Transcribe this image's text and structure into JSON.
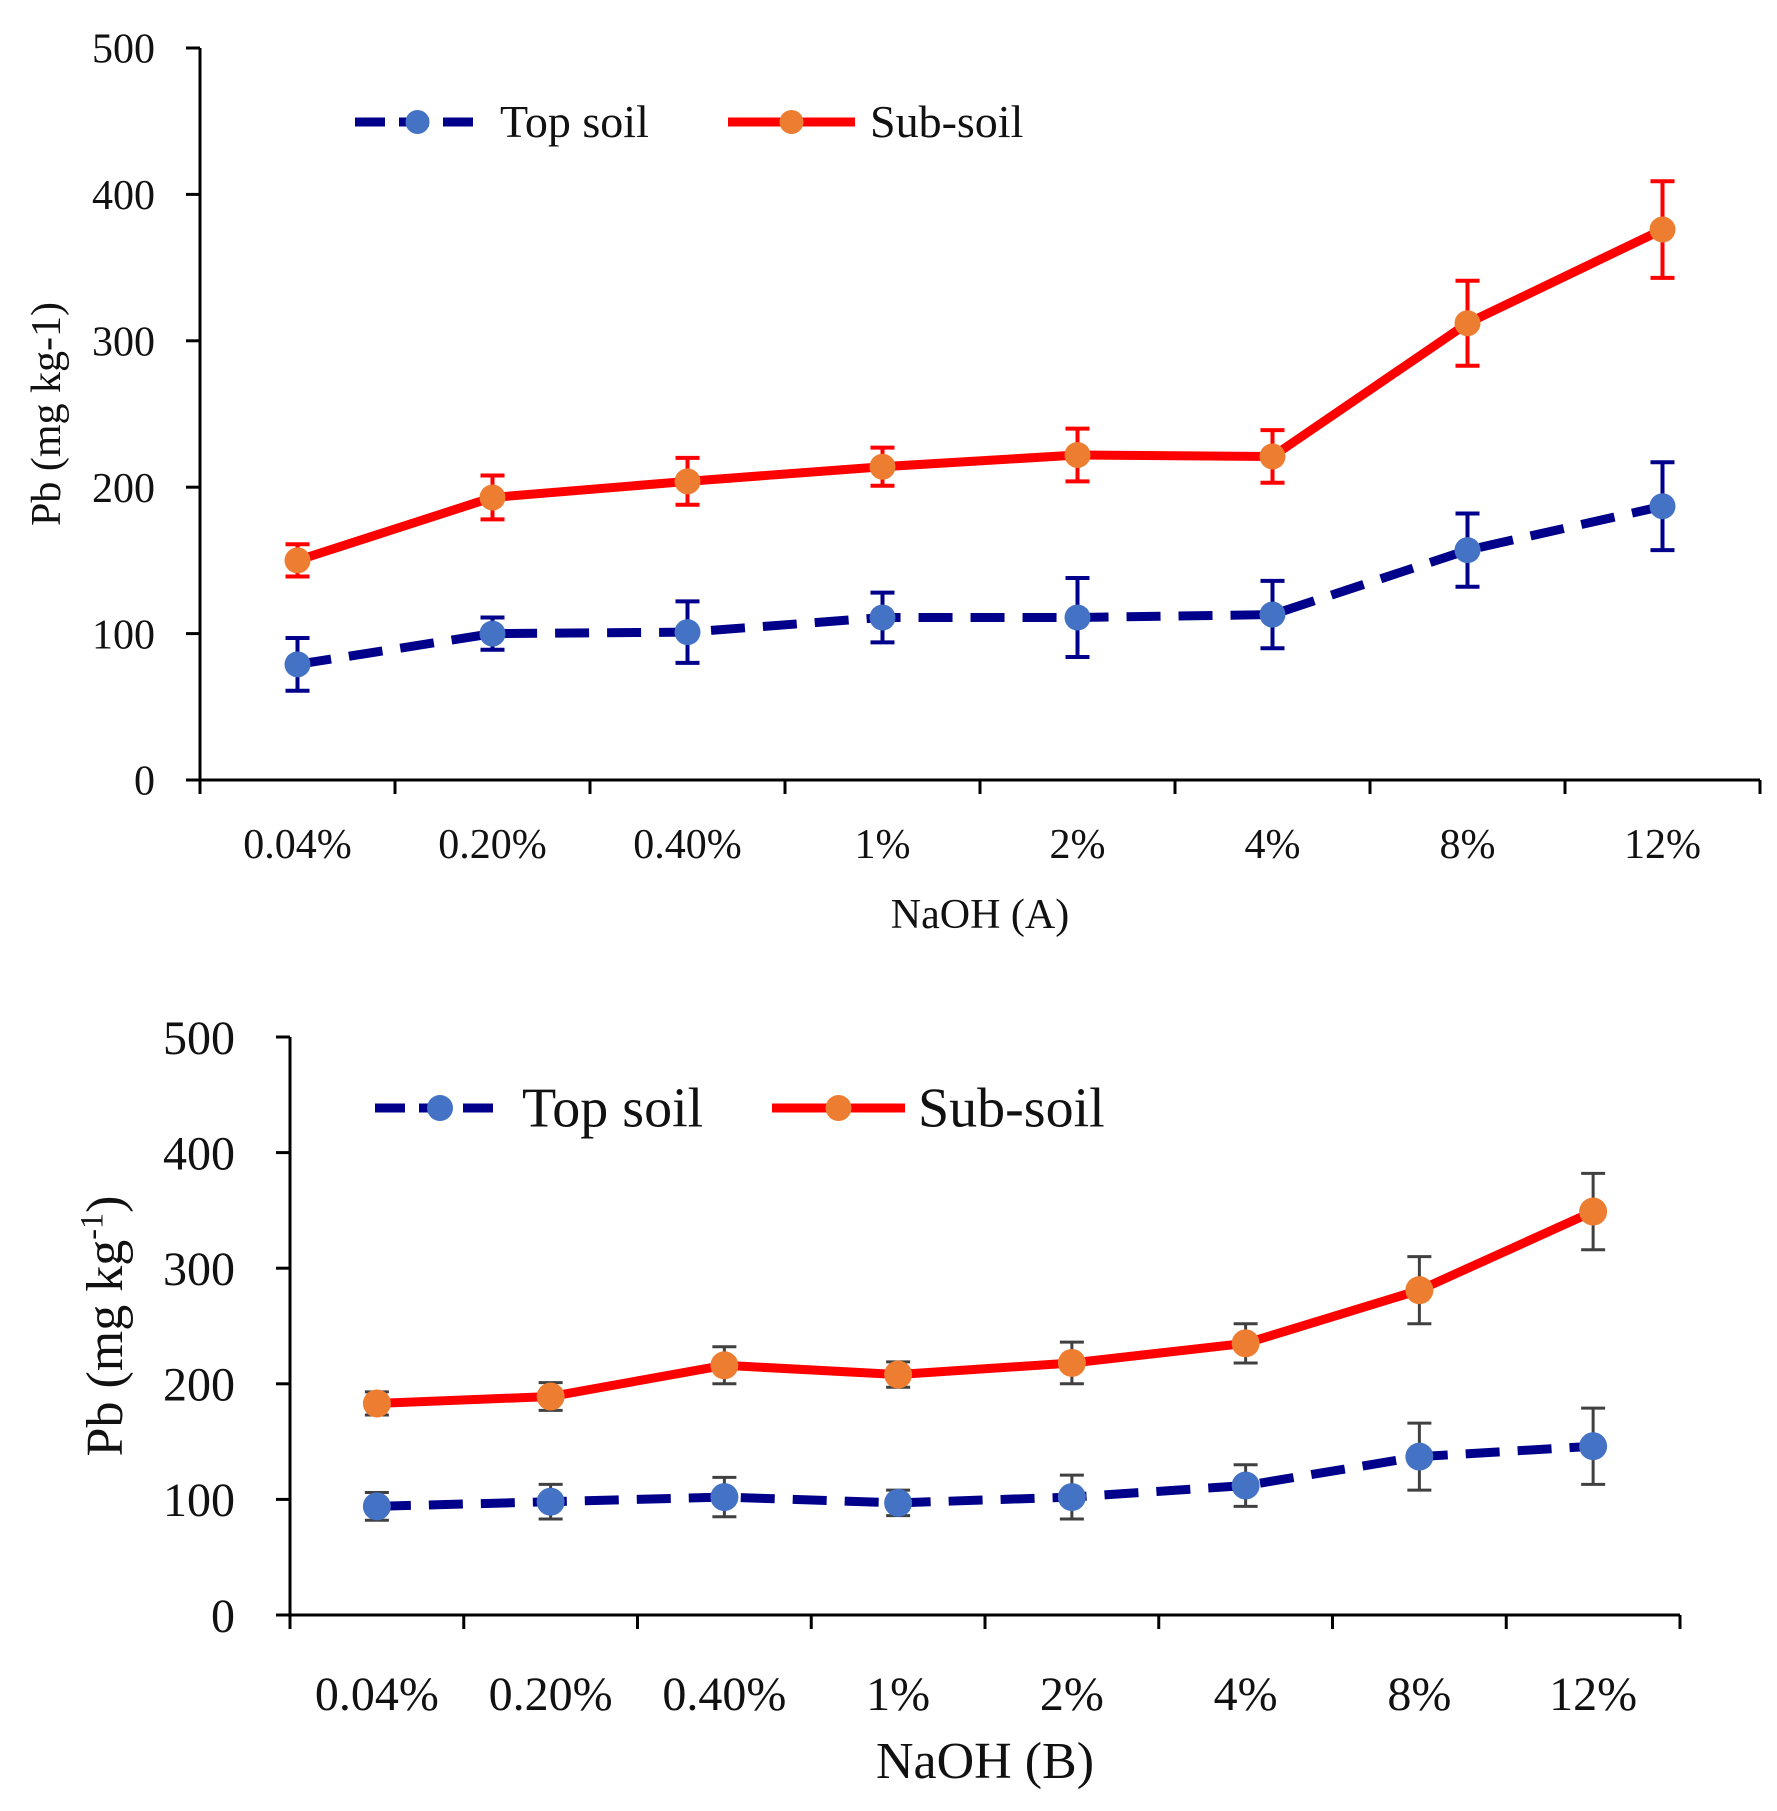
{
  "chart_data": [
    {
      "type": "line",
      "categories": [
        "0.04%",
        "0.20%",
        "0.40%",
        "1%",
        "2%",
        "4%",
        "8%",
        "12%"
      ],
      "xlabel": "NaOH (A)",
      "ylabel": "Pb (mg kg-1)",
      "ylim": [
        0,
        500
      ],
      "yticks": [
        0,
        100,
        200,
        300,
        400,
        500
      ],
      "grid": false,
      "legend": "top-left",
      "series": [
        {
          "name": "Top soil",
          "values": [
            79,
            100,
            101,
            111,
            111,
            113,
            157,
            187
          ],
          "error": [
            18,
            11,
            21,
            17,
            27,
            23,
            25,
            30
          ],
          "line_color": "#00008B",
          "marker_color": "#4472C4",
          "dash": true
        },
        {
          "name": "Sub-soil",
          "values": [
            150,
            193,
            204,
            214,
            222,
            221,
            312,
            376
          ],
          "error": [
            11,
            15,
            16,
            13,
            18,
            18,
            29,
            33
          ],
          "line_color": "#FF0000",
          "marker_color": "#ED7D31",
          "error_color": "#FF0000",
          "dash": false
        }
      ]
    },
    {
      "type": "line",
      "categories": [
        "0.04%",
        "0.20%",
        "0.40%",
        "1%",
        "2%",
        "4%",
        "8%",
        "12%"
      ],
      "xlabel": "NaOH (B)",
      "ylabel_main": "Pb (mg kg",
      "ylabel_sup": "-1",
      "ylabel_end": ")",
      "ylim": [
        0,
        500
      ],
      "yticks": [
        0,
        100,
        200,
        300,
        400,
        500
      ],
      "grid": false,
      "legend": "top-left",
      "series": [
        {
          "name": "Top soil",
          "values": [
            94,
            98,
            102,
            97,
            102,
            112,
            137,
            146
          ],
          "error": [
            12,
            15,
            17,
            11,
            19,
            18,
            29,
            33
          ],
          "line_color": "#00008B",
          "marker_color": "#4472C4",
          "error_color": "#404040",
          "dash": true
        },
        {
          "name": "Sub-soil",
          "values": [
            183,
            189,
            216,
            208,
            218,
            235,
            281,
            349
          ],
          "error": [
            10,
            12,
            16,
            11,
            18,
            17,
            29,
            33
          ],
          "line_color": "#FF0000",
          "marker_color": "#ED7D31",
          "error_color": "#404040",
          "dash": false
        }
      ]
    }
  ]
}
